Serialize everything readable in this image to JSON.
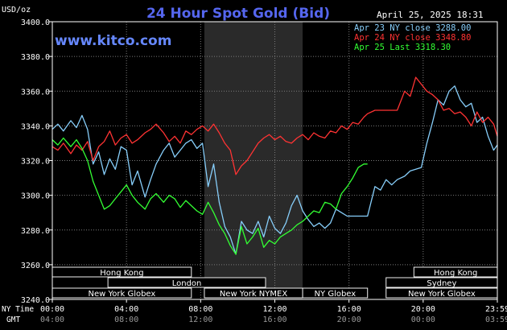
{
  "chart_data": {
    "type": "line",
    "title": "24 Hour Spot Gold (Bid)",
    "watermark": "www.kitco.com",
    "date_stamp": "April 25, 2025 18:31",
    "ylabel": "USD/oz",
    "ylim": [
      3240,
      3400
    ],
    "y_ticks": [
      "3400.0",
      "3380.0",
      "3360.0",
      "3340.0",
      "3320.0",
      "3300.0",
      "3280.0",
      "3260.0",
      "3240.0"
    ],
    "x_row_labels": [
      "NY Time",
      "GMT"
    ],
    "x_ticks_ny": [
      "00:00",
      "04:00",
      "08:00",
      "12:00",
      "16:00",
      "20:00",
      "23:59"
    ],
    "x_ticks_gmt": [
      "04:00",
      "08:00",
      "12:00",
      "16:00",
      "20:00",
      "00:00",
      "03:59"
    ],
    "xlim_hours": [
      0,
      24
    ],
    "grid": true,
    "legend_position": "top-right",
    "colors": {
      "series1": "#87CEFA",
      "series2": "#FF3333",
      "series3": "#33FF33",
      "title": "#5566EE",
      "watermark": "#6688FF",
      "axis_text": "#FFFFFF",
      "nymex_shade": "#2a2a2a",
      "session_box": "#F0F0F0"
    },
    "series": [
      {
        "name": "Apr 23 NY close 3288.00",
        "close_line": 3288.0,
        "x": [
          0,
          0.3,
          0.6,
          1.0,
          1.3,
          1.6,
          1.9,
          2.2,
          2.5,
          2.8,
          3.1,
          3.4,
          3.7,
          4.0,
          4.3,
          4.6,
          5.0,
          5.3,
          5.6,
          6.0,
          6.3,
          6.6,
          6.9,
          7.2,
          7.5,
          7.8,
          8.1,
          8.4,
          8.7,
          9.0,
          9.3,
          9.6,
          9.9,
          10.2,
          10.5,
          10.8,
          11.1,
          11.4,
          11.7,
          12.0,
          12.3,
          12.6,
          12.9,
          13.2,
          13.5,
          13.8,
          14.1,
          14.4,
          14.7,
          15.0,
          15.3,
          15.6,
          15.9,
          16.2,
          16.5,
          16.8,
          17.0,
          17.4,
          17.7,
          18.0,
          18.3,
          18.6,
          19.0,
          19.3,
          19.6,
          19.9,
          20.2,
          20.5,
          20.8,
          21.1,
          21.4,
          21.7,
          22.0,
          22.3,
          22.6,
          22.9,
          23.2,
          23.5,
          23.8,
          24.0
        ],
        "y": [
          3338,
          3341,
          3337,
          3343,
          3339,
          3346,
          3338,
          3318,
          3325,
          3312,
          3321,
          3315,
          3328,
          3326,
          3306,
          3314,
          3299,
          3309,
          3318,
          3326,
          3330,
          3322,
          3326,
          3330,
          3332,
          3327,
          3330,
          3305,
          3318,
          3296,
          3282,
          3276,
          3266,
          3285,
          3280,
          3278,
          3285,
          3276,
          3288,
          3281,
          3278,
          3284,
          3294,
          3300,
          3291,
          3286,
          3282,
          3284,
          3281,
          3284,
          3292,
          3290,
          3288,
          3288,
          3288,
          3288,
          3288,
          3305,
          3303,
          3309,
          3306,
          3309,
          3311,
          3314,
          3315,
          3316,
          3330,
          3342,
          3355,
          3352,
          3360,
          3363,
          3355,
          3351,
          3353,
          3342,
          3345,
          3334,
          3326,
          3329
        ]
      },
      {
        "name": "Apr 24 NY close 3348.80",
        "close_line": 3348.8,
        "x": [
          0,
          0.3,
          0.6,
          1.0,
          1.3,
          1.6,
          1.9,
          2.2,
          2.5,
          2.8,
          3.1,
          3.4,
          3.7,
          4.0,
          4.3,
          4.6,
          5.0,
          5.3,
          5.6,
          6.0,
          6.3,
          6.6,
          6.9,
          7.2,
          7.5,
          7.8,
          8.1,
          8.4,
          8.7,
          9.0,
          9.3,
          9.6,
          9.9,
          10.2,
          10.5,
          10.8,
          11.1,
          11.4,
          11.7,
          12.0,
          12.3,
          12.6,
          12.9,
          13.2,
          13.5,
          13.8,
          14.1,
          14.4,
          14.7,
          15.0,
          15.3,
          15.6,
          15.9,
          16.2,
          16.5,
          16.8,
          17.0,
          17.4,
          17.7,
          18.0,
          18.3,
          18.6,
          19.0,
          19.3,
          19.6,
          19.9,
          20.2,
          20.5,
          20.8,
          21.1,
          21.4,
          21.7,
          22.0,
          22.3,
          22.6,
          22.9,
          23.2,
          23.5,
          23.8,
          24.0
        ],
        "y": [
          3328,
          3326,
          3330,
          3324,
          3329,
          3326,
          3331,
          3320,
          3328,
          3331,
          3337,
          3329,
          3333,
          3335,
          3330,
          3332,
          3336,
          3338,
          3341,
          3336,
          3331,
          3334,
          3330,
          3337,
          3335,
          3338,
          3340,
          3337,
          3341,
          3336,
          3330,
          3326,
          3312,
          3317,
          3320,
          3325,
          3330,
          3333,
          3335,
          3332,
          3334,
          3331,
          3330,
          3333,
          3335,
          3332,
          3336,
          3334,
          3333,
          3337,
          3336,
          3340,
          3338,
          3342,
          3341,
          3345,
          3347,
          3349,
          3349,
          3349,
          3349,
          3349,
          3360,
          3357,
          3368,
          3364,
          3360,
          3358,
          3355,
          3349,
          3350,
          3347,
          3348,
          3345,
          3340,
          3348,
          3342,
          3345,
          3341,
          3334
        ]
      },
      {
        "name": "Apr 25 Last 3318.30",
        "close_line": 3318.3,
        "x": [
          0,
          0.3,
          0.6,
          1.0,
          1.3,
          1.6,
          1.9,
          2.2,
          2.5,
          2.8,
          3.1,
          3.4,
          3.7,
          4.0,
          4.3,
          4.6,
          5.0,
          5.3,
          5.6,
          6.0,
          6.3,
          6.6,
          6.9,
          7.2,
          7.5,
          7.8,
          8.1,
          8.4,
          8.7,
          9.0,
          9.3,
          9.6,
          9.9,
          10.2,
          10.5,
          10.8,
          11.1,
          11.4,
          11.7,
          12.0,
          12.3,
          12.6,
          12.9,
          13.2,
          13.5,
          13.8,
          14.1,
          14.4,
          14.7,
          15.0,
          15.3,
          15.6,
          15.9,
          16.2,
          16.5,
          16.8,
          17.0
        ],
        "y": [
          3332,
          3329,
          3333,
          3328,
          3332,
          3327,
          3320,
          3308,
          3300,
          3292,
          3294,
          3298,
          3302,
          3306,
          3300,
          3296,
          3292,
          3298,
          3301,
          3296,
          3300,
          3298,
          3293,
          3297,
          3294,
          3291,
          3289,
          3296,
          3290,
          3283,
          3278,
          3271,
          3266,
          3282,
          3272,
          3276,
          3281,
          3270,
          3274,
          3272,
          3276,
          3278,
          3280,
          3283,
          3285,
          3288,
          3291,
          3290,
          3296,
          3295,
          3292,
          3301,
          3305,
          3310,
          3316,
          3318,
          3318
        ]
      }
    ],
    "sessions": [
      {
        "label": "Hong Kong",
        "row": 0,
        "start": 0,
        "end": 7.5
      },
      {
        "label": "Hong Kong",
        "row": 0,
        "start": 19.5,
        "end": 24
      },
      {
        "label": "London",
        "row": 1,
        "start": 3.0,
        "end": 11.5
      },
      {
        "label": "Sydney",
        "row": 1,
        "start": 18.0,
        "end": 24
      },
      {
        "label": "New York Globex",
        "row": 2,
        "start": 0,
        "end": 7.5
      },
      {
        "label": "New York NYMEX",
        "row": 2,
        "start": 8.2,
        "end": 13.5
      },
      {
        "label": "NY Globex",
        "row": 2,
        "start": 13.5,
        "end": 17.0
      },
      {
        "label": "New York Globex",
        "row": 2,
        "start": 18.0,
        "end": 24
      }
    ],
    "nymex_shade": {
      "start": 8.2,
      "end": 13.5
    }
  }
}
